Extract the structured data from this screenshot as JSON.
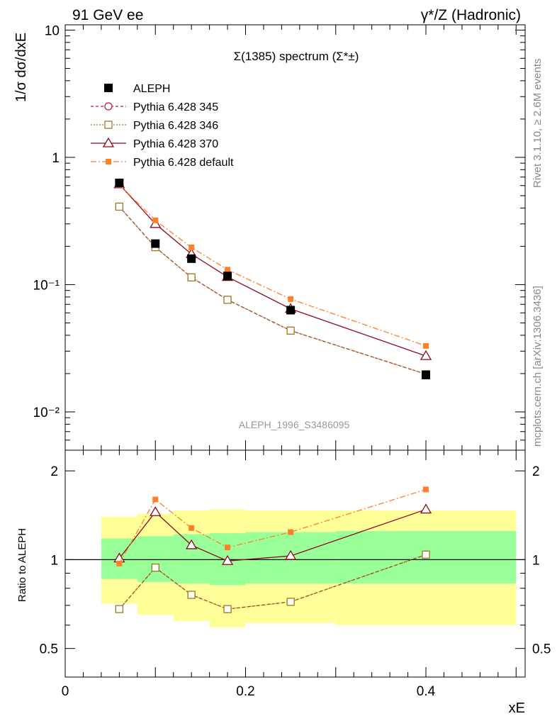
{
  "header": {
    "left": "91 GeV ee",
    "right": "γ*/Z (Hadronic)"
  },
  "side_labels": {
    "rivet": "Rivet 3.1.10, ≥ 2.6M events",
    "mcplots": "mcplots.cern.ch [arXiv:1306.3436]"
  },
  "chart_data": [
    {
      "type": "line",
      "title": "Σ(1385) spectrum (Σ*±)",
      "ylabel": "1/σ dσ/dxE",
      "watermark": "ALEPH_1996_S3486095",
      "xlim": [
        0,
        0.51
      ],
      "ylim": [
        0.005,
        11
      ],
      "yscale": "log",
      "y_ticklabels": [
        "10",
        "1",
        "10⁻¹",
        "10⁻²"
      ],
      "legend_position": "top-left",
      "x": [
        0.06,
        0.1,
        0.14,
        0.18,
        0.25,
        0.4
      ],
      "data": {
        "name": "ALEPH",
        "values": [
          0.63,
          0.21,
          0.16,
          0.117,
          0.063,
          0.0195
        ]
      },
      "series": [
        {
          "name": "Pythia 6.428 345",
          "color": "#b22234",
          "marker": "open-circle",
          "dash": "4,3",
          "values": [
            0.41,
            0.197,
            0.114,
            0.076,
            0.0435,
            0.0198
          ]
        },
        {
          "name": "Pythia 6.428 346",
          "color": "#a07820",
          "marker": "open-square",
          "dash": "2,2",
          "values": [
            0.41,
            0.197,
            0.114,
            0.076,
            0.0435,
            0.0198
          ]
        },
        {
          "name": "Pythia 6.428 370",
          "color": "#8b0a1e",
          "marker": "open-triangle",
          "dash": "",
          "values": [
            0.615,
            0.3,
            0.174,
            0.115,
            0.0645,
            0.0275
          ]
        },
        {
          "name": "Pythia 6.428 default",
          "color": "#ff7f2a",
          "marker": "filled-square",
          "dash": "8,3,2,3",
          "values": [
            0.61,
            0.32,
            0.196,
            0.131,
            0.077,
            0.033
          ]
        }
      ]
    },
    {
      "type": "line",
      "ylabel": "Ratio to ALEPH",
      "xlabel": "xE",
      "xlim": [
        0,
        0.51
      ],
      "ylim": [
        0.4,
        2.35
      ],
      "yscale": "log",
      "x_ticks": [
        0,
        0.2,
        0.4
      ],
      "x_ticklabels": [
        "0",
        "0.2",
        "0.4"
      ],
      "y_ticks": [
        0.5,
        1,
        2
      ],
      "y_ticklabels": [
        "0.5",
        "1",
        "2"
      ],
      "reference_line": 1,
      "uncertainty_bins": [
        {
          "x0": 0.04,
          "x1": 0.08,
          "yellow": [
            0.71,
            1.4
          ],
          "green": [
            0.86,
            1.18
          ]
        },
        {
          "x0": 0.08,
          "x1": 0.12,
          "yellow": [
            0.65,
            1.43
          ],
          "green": [
            0.84,
            1.2
          ]
        },
        {
          "x0": 0.12,
          "x1": 0.16,
          "yellow": [
            0.62,
            1.47
          ],
          "green": [
            0.83,
            1.22
          ]
        },
        {
          "x0": 0.16,
          "x1": 0.2,
          "yellow": [
            0.59,
            1.48
          ],
          "green": [
            0.82,
            1.23
          ]
        },
        {
          "x0": 0.2,
          "x1": 0.3,
          "yellow": [
            0.61,
            1.47
          ],
          "green": [
            0.83,
            1.24
          ]
        },
        {
          "x0": 0.3,
          "x1": 0.5,
          "yellow": [
            0.6,
            1.47
          ],
          "green": [
            0.83,
            1.25
          ]
        }
      ],
      "x": [
        0.06,
        0.1,
        0.14,
        0.18,
        0.25,
        0.4
      ],
      "series": [
        {
          "name": "Pythia 6.428 345",
          "color": "#b22234",
          "marker": "open-circle",
          "dash": "4,3",
          "values": [
            0.68,
            0.94,
            0.76,
            0.68,
            0.72,
            1.04
          ]
        },
        {
          "name": "Pythia 6.428 346",
          "color": "#a07820",
          "marker": "open-square",
          "dash": "2,2",
          "values": [
            0.68,
            0.94,
            0.76,
            0.68,
            0.72,
            1.04
          ]
        },
        {
          "name": "Pythia 6.428 370",
          "color": "#8b0a1e",
          "marker": "open-triangle",
          "dash": "",
          "values": [
            1.01,
            1.45,
            1.12,
            0.99,
            1.03,
            1.48
          ]
        },
        {
          "name": "Pythia 6.428 default",
          "color": "#ff7f2a",
          "marker": "filled-square",
          "dash": "8,3,2,3",
          "values": [
            0.97,
            1.6,
            1.28,
            1.1,
            1.24,
            1.73
          ]
        }
      ]
    }
  ]
}
